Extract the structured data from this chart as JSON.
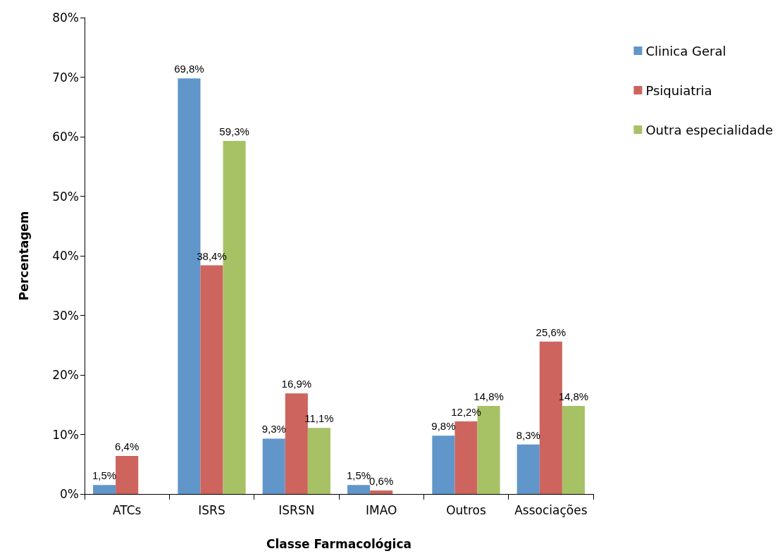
{
  "chart_data": {
    "type": "bar",
    "xlabel": "Classe Farmacológica",
    "ylabel": "Percentagem",
    "categories": [
      "ATCs",
      "ISRS",
      "ISRSN",
      "IMAO",
      "Outros",
      "Associações"
    ],
    "series": [
      {
        "name": "Clinica Geral",
        "color": "#6096c9",
        "values": [
          1.5,
          69.8,
          9.3,
          1.5,
          9.8,
          8.3
        ],
        "value_labels": [
          "1,5%",
          "69,8%",
          "9,3%",
          "1,5%",
          "9,8%",
          "8,3%"
        ]
      },
      {
        "name": "Psiquiatria",
        "color": "#cd645e",
        "values": [
          6.4,
          38.4,
          16.9,
          0.6,
          12.2,
          25.6
        ],
        "value_labels": [
          "6,4%",
          "38,4%",
          "16,9%",
          "0,6%",
          "12,2%",
          "25,6%"
        ]
      },
      {
        "name": "Outra especialidade",
        "color": "#a7c264",
        "values": [
          null,
          59.3,
          11.1,
          null,
          14.8,
          14.8
        ],
        "value_labels": [
          null,
          "59,3%",
          "11,1%",
          null,
          "14,8%",
          "14,8%"
        ]
      }
    ],
    "ylim": [
      0,
      80
    ],
    "yticks": [
      {
        "value": 0,
        "label": "0%"
      },
      {
        "value": 10,
        "label": "10%"
      },
      {
        "value": 20,
        "label": "20%"
      },
      {
        "value": 30,
        "label": "30%"
      },
      {
        "value": 40,
        "label": "40%"
      },
      {
        "value": 50,
        "label": "50%"
      },
      {
        "value": 60,
        "label": "60%"
      },
      {
        "value": 70,
        "label": "70%"
      },
      {
        "value": 80,
        "label": "80%"
      }
    ],
    "grid": false,
    "legend": "top right"
  }
}
